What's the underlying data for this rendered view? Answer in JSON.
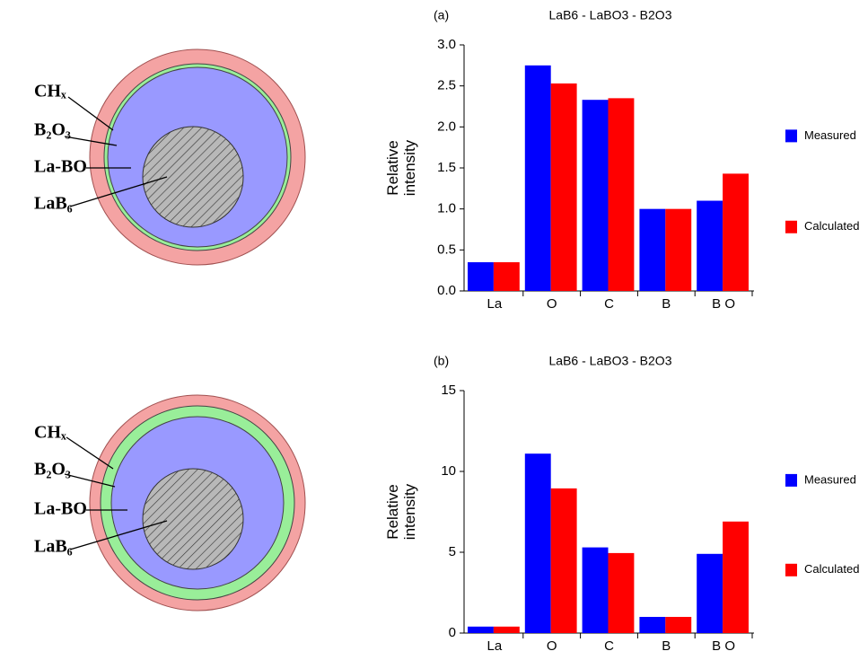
{
  "diagrams": [
    {
      "labels": [
        "CHₓ",
        "B₂O₃",
        "La-BO",
        "LaB₆"
      ]
    },
    {
      "labels": [
        "CHₓ",
        "B₂O₃",
        "La-BO",
        "LaB₆"
      ]
    }
  ],
  "chart_data": [
    {
      "type": "bar",
      "panel_label": "(a)",
      "title": "LaB6 - LaBO3 - B2O3",
      "ylabel": [
        "Relative",
        "intensity"
      ],
      "categories": [
        "La",
        "O",
        "C",
        "B",
        "B O"
      ],
      "series": [
        {
          "name": "Measured",
          "color": "#0000ff",
          "values": [
            0.35,
            2.75,
            2.33,
            1.0,
            1.1
          ]
        },
        {
          "name": "Calculated",
          "color": "#ff0000",
          "values": [
            0.35,
            2.53,
            2.35,
            1.0,
            1.43
          ]
        }
      ],
      "ylim": [
        0,
        3
      ],
      "yticks": [
        {
          "value": 0,
          "label": "0.0"
        },
        0.5,
        {
          "value": 1,
          "label": "1.0"
        },
        1.5,
        {
          "value": 2,
          "label": "2.0"
        },
        2.5,
        {
          "value": 3,
          "label": "3.0"
        }
      ],
      "legend": "right"
    },
    {
      "type": "bar",
      "panel_label": "(b)",
      "title": "LaB6 - LaBO3 - B2O3",
      "ylabel": [
        "Relative",
        "intensity"
      ],
      "categories": [
        "La",
        "O",
        "C",
        "B",
        "B O"
      ],
      "series": [
        {
          "name": "Measured",
          "color": "#0000ff",
          "values": [
            0.4,
            11.1,
            5.3,
            1.0,
            4.9
          ]
        },
        {
          "name": "Calculated",
          "color": "#ff0000",
          "values": [
            0.4,
            8.95,
            4.95,
            1.0,
            6.9
          ]
        }
      ],
      "ylim": [
        0,
        15
      ],
      "yticks": [
        0,
        5,
        10,
        15
      ],
      "legend": "right"
    }
  ]
}
